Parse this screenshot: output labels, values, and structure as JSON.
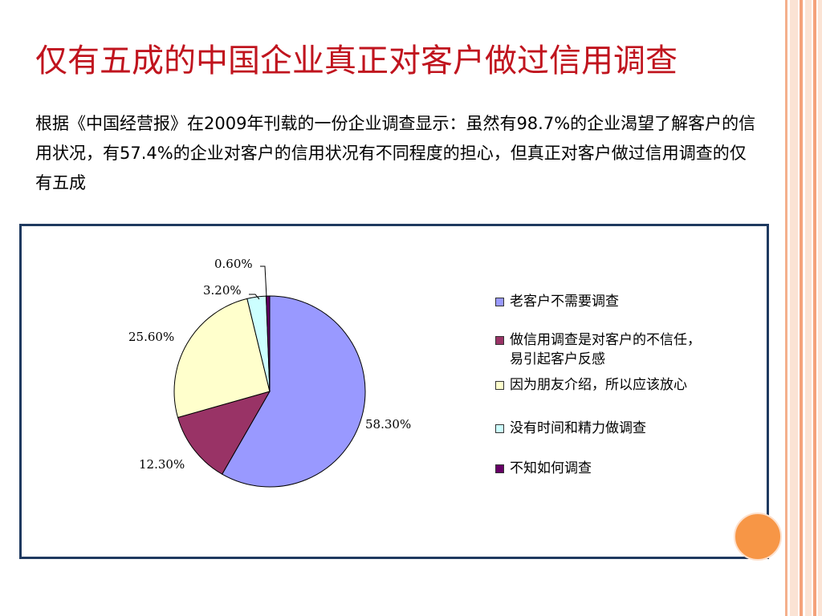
{
  "slide": {
    "title": "仅有五成的中国企业真正对客户做过信用调查",
    "body_text": "根据《中国经营报》在2009年刊载的一份企业调查显示：虽然有98.7%的企业渴望了解客户的信用状况，有57.4%的企业对客户的信用状况有不同程度的担心，但真正对客户做过信用调查的仅有五成"
  },
  "chart_data": {
    "type": "pie",
    "slices": [
      {
        "label": "老客户不需要调查",
        "value": 58.3,
        "value_label": "58.30%",
        "color": "#9999ff"
      },
      {
        "label": "做信用调查是对客户的不信任，易引起客户反感",
        "value": 12.3,
        "value_label": "12.30%",
        "color": "#993366"
      },
      {
        "label": "因为朋友介绍，所以应该放心",
        "value": 25.6,
        "value_label": "25.60%",
        "color": "#ffffcc"
      },
      {
        "label": "没有时间和精力做调查",
        "value": 3.2,
        "value_label": "3.20%",
        "color": "#ccffff"
      },
      {
        "label": "不知如何调查",
        "value": 0.6,
        "value_label": "0.60%",
        "color": "#660066"
      }
    ],
    "legend_position": "right"
  }
}
